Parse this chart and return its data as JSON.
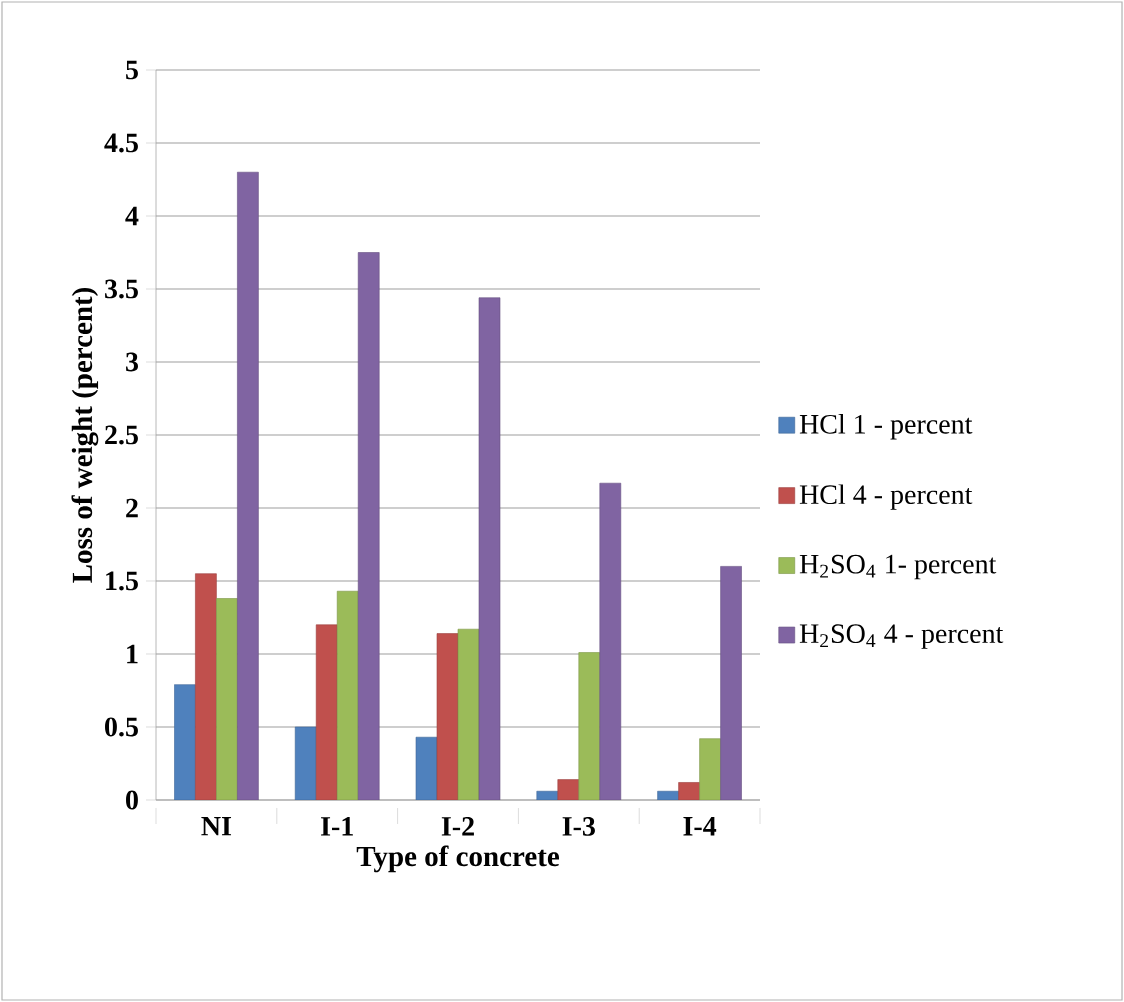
{
  "chart_data": {
    "type": "bar",
    "xlabel": "Type of concrete",
    "ylabel": "Loss of weight (percent)",
    "categories": [
      "NI",
      "I-1",
      "I-2",
      "I-3",
      "I-4"
    ],
    "series": [
      {
        "name": "HCl 1 - percent",
        "color": "#4f81bd",
        "values": [
          0.79,
          0.5,
          0.43,
          0.06,
          0.06
        ]
      },
      {
        "name": "HCl 4 - percent",
        "color": "#c0504d",
        "values": [
          1.55,
          1.2,
          1.14,
          0.14,
          0.12
        ]
      },
      {
        "name": "H$_{2}$SO$_{4}$ 1- percent",
        "color": "#9bbb59",
        "values": [
          1.38,
          1.43,
          1.17,
          1.01,
          0.42
        ]
      },
      {
        "name": "H$_{2}$SO$_{4}$ 4 - percent",
        "color": "#8064a2",
        "values": [
          4.3,
          3.75,
          3.44,
          2.17,
          1.6
        ]
      }
    ],
    "ylim": [
      0,
      5
    ],
    "yticks": [
      0,
      0.5,
      1,
      1.5,
      2,
      2.5,
      3,
      3.5,
      4,
      4.5,
      5
    ],
    "grid": "y",
    "legend": "right"
  }
}
